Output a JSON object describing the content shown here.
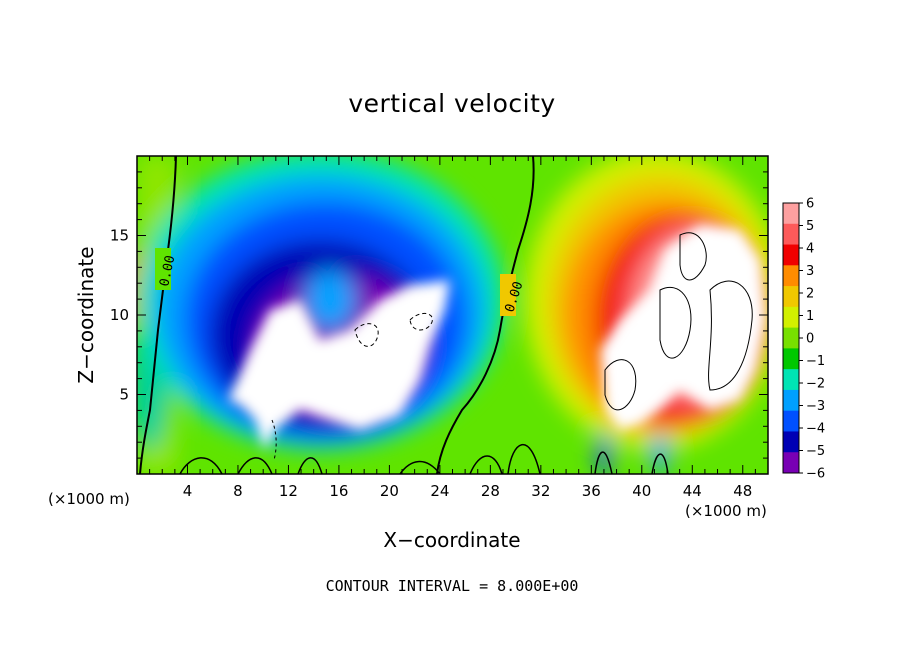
{
  "chart_data": {
    "type": "heatmap",
    "title": "vertical velocity",
    "xlabel": "X−coordinate",
    "ylabel": "Z−coordinate",
    "x_unit_left": "(×1000 m)",
    "x_unit_right": "(×1000 m)",
    "xlim": [
      0,
      50
    ],
    "ylim": [
      0,
      20
    ],
    "x_ticks": [
      "4",
      "8",
      "12",
      "16",
      "20",
      "24",
      "28",
      "32",
      "36",
      "40",
      "44",
      "48"
    ],
    "y_ticks": [
      "5",
      "10",
      "15"
    ],
    "contour_interval": "CONTOUR INTERVAL = 8.000E+00",
    "contour_labels": [
      "0.00",
      "0.00"
    ],
    "colorbar": {
      "range": [
        -6,
        6
      ],
      "labels": [
        "6",
        "5",
        "4",
        "3",
        "2",
        "1",
        "0",
        "−1",
        "−2",
        "−3",
        "−4",
        "−5",
        "−6"
      ],
      "colors": [
        "#fda0a0",
        "#fd5a5a",
        "#f00000",
        "#ff8c00",
        "#f0c800",
        "#d2f000",
        "#78e000",
        "#00c800",
        "#00e4b4",
        "#00a0ff",
        "#0050ff",
        "#0000b4",
        "#7800b4"
      ]
    },
    "features": [
      {
        "name": "downdraft",
        "x": 15,
        "z": 9,
        "value": -6
      },
      {
        "name": "updraft",
        "x": 44,
        "z": 9,
        "value": 6
      }
    ]
  }
}
